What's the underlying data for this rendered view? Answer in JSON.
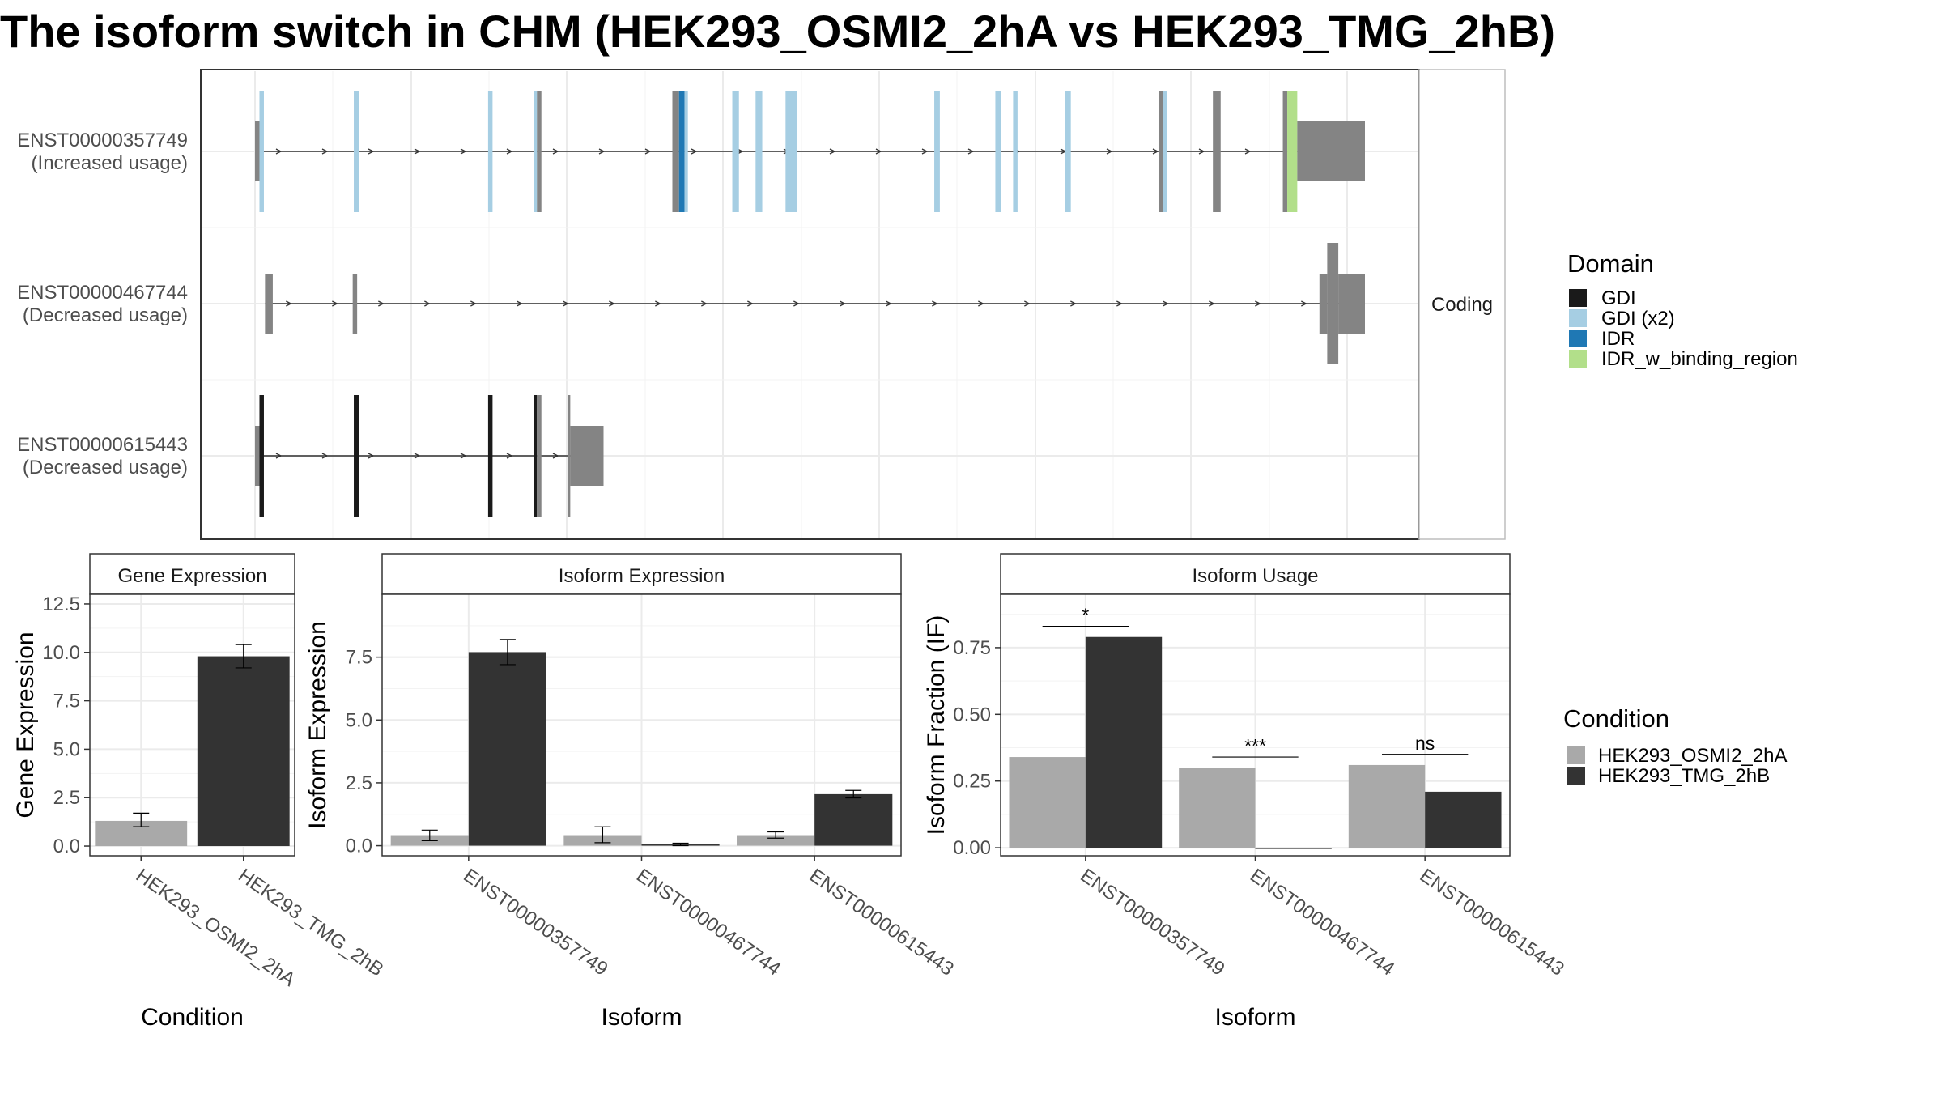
{
  "title": "The isoform switch in CHM (HEK293_OSMI2_2hA vs HEK293_TMG_2hB)",
  "colors": {
    "OSMI2": "#a9a9a9",
    "TMG": "#333333",
    "utr": "#848484",
    "GDI": "#1a1a1a",
    "GDI_x2": "#a6cee3",
    "IDR": "#1f78b4",
    "IDR_w_binding_region": "#b2df8a"
  },
  "chart_data": [
    {
      "type": "gene-structure",
      "facet_label": "Coding",
      "transcripts": [
        {
          "id": "ENST00000357749",
          "usage": "(Increased usage)",
          "segments": [
            {
              "start": 0.0,
              "end": 0.004,
              "kind": "utr"
            },
            {
              "start": 0.004,
              "end": 0.008,
              "kind": "GDI (x2)"
            },
            {
              "start": 0.089,
              "end": 0.094,
              "kind": "GDI (x2)"
            },
            {
              "start": 0.21,
              "end": 0.214,
              "kind": "GDI (x2)"
            },
            {
              "start": 0.251,
              "end": 0.254,
              "kind": "GDI (x2)"
            },
            {
              "start": 0.254,
              "end": 0.258,
              "kind": "utr"
            },
            {
              "start": 0.376,
              "end": 0.382,
              "kind": "utr"
            },
            {
              "start": 0.382,
              "end": 0.387,
              "kind": "IDR"
            },
            {
              "start": 0.387,
              "end": 0.39,
              "kind": "GDI (x2)"
            },
            {
              "start": 0.43,
              "end": 0.436,
              "kind": "GDI (x2)"
            },
            {
              "start": 0.451,
              "end": 0.457,
              "kind": "GDI (x2)"
            },
            {
              "start": 0.478,
              "end": 0.488,
              "kind": "GDI (x2)"
            },
            {
              "start": 0.612,
              "end": 0.617,
              "kind": "GDI (x2)"
            },
            {
              "start": 0.667,
              "end": 0.672,
              "kind": "GDI (x2)"
            },
            {
              "start": 0.683,
              "end": 0.687,
              "kind": "GDI (x2)"
            },
            {
              "start": 0.73,
              "end": 0.735,
              "kind": "GDI (x2)"
            },
            {
              "start": 0.814,
              "end": 0.818,
              "kind": "utr"
            },
            {
              "start": 0.818,
              "end": 0.822,
              "kind": "GDI (x2)"
            },
            {
              "start": 0.863,
              "end": 0.87,
              "kind": "utr"
            },
            {
              "start": 0.926,
              "end": 0.93,
              "kind": "utr"
            },
            {
              "start": 0.93,
              "end": 0.939,
              "kind": "IDR_w_binding_region"
            },
            {
              "start": 0.939,
              "end": 1.0,
              "kind": "utr3"
            }
          ]
        },
        {
          "id": "ENST00000467744",
          "usage": "(Decreased usage)",
          "segments": [
            {
              "start": 0.009,
              "end": 0.016,
              "kind": "utr"
            },
            {
              "start": 0.088,
              "end": 0.092,
              "kind": "utr"
            },
            {
              "start": 0.959,
              "end": 0.966,
              "kind": "utr"
            },
            {
              "start": 0.966,
              "end": 0.976,
              "kind": "cds"
            },
            {
              "start": 0.976,
              "end": 1.0,
              "kind": "utr"
            }
          ]
        },
        {
          "id": "ENST00000615443",
          "usage": "(Decreased usage)",
          "segments": [
            {
              "start": 0.0,
              "end": 0.004,
              "kind": "utr"
            },
            {
              "start": 0.004,
              "end": 0.008,
              "kind": "GDI"
            },
            {
              "start": 0.089,
              "end": 0.094,
              "kind": "GDI"
            },
            {
              "start": 0.21,
              "end": 0.214,
              "kind": "GDI"
            },
            {
              "start": 0.251,
              "end": 0.254,
              "kind": "GDI"
            },
            {
              "start": 0.254,
              "end": 0.258,
              "kind": "utr"
            },
            {
              "start": 0.282,
              "end": 0.284,
              "kind": "utr"
            },
            {
              "start": 0.284,
              "end": 0.314,
              "kind": "utr3"
            }
          ]
        }
      ],
      "legend": {
        "title": "Domain",
        "entries": [
          {
            "label": "GDI",
            "color": "#1a1a1a"
          },
          {
            "label": "GDI (x2)",
            "color": "#a6cee3"
          },
          {
            "label": "IDR",
            "color": "#1f78b4"
          },
          {
            "label": "IDR_w_binding_region",
            "color": "#b2df8a"
          }
        ]
      }
    },
    {
      "type": "bar",
      "title": "Gene Expression",
      "xlabel": "Condition",
      "ylabel": "Gene Expression",
      "categories": [
        "HEK293_OSMI2_2hA",
        "HEK293_TMG_2hB"
      ],
      "series": [
        {
          "name": "HEK293_OSMI2_2hA",
          "values": [
            1.3,
            null
          ],
          "errors": [
            [
              1.0,
              1.7
            ],
            null
          ]
        },
        {
          "name": "HEK293_TMG_2hB",
          "values": [
            null,
            9.8
          ],
          "errors": [
            null,
            [
              9.2,
              10.4
            ]
          ]
        }
      ],
      "yticks": [
        0.0,
        2.5,
        5.0,
        7.5,
        10.0,
        12.5
      ],
      "ytick_labels": [
        "0.0",
        "2.5",
        "5.0",
        "7.5",
        "10.0",
        "12.5"
      ],
      "ylim": [
        -0.5,
        13.0
      ]
    },
    {
      "type": "bar",
      "title": "Isoform Expression",
      "xlabel": "Isoform",
      "ylabel": "Isoform Expression",
      "categories": [
        "ENST00000357749",
        "ENST00000467744",
        "ENST00000615443"
      ],
      "series": [
        {
          "name": "HEK293_OSMI2_2hA",
          "values": [
            0.42,
            0.42,
            0.42
          ],
          "errors": [
            [
              0.2,
              0.62
            ],
            [
              0.12,
              0.75
            ],
            [
              0.3,
              0.55
            ]
          ]
        },
        {
          "name": "HEK293_TMG_2hB",
          "values": [
            7.7,
            0.05,
            2.05
          ],
          "errors": [
            [
              7.2,
              8.2
            ],
            [
              0.0,
              0.1
            ],
            [
              1.9,
              2.2
            ]
          ]
        }
      ],
      "yticks": [
        0.0,
        2.5,
        5.0,
        7.5
      ],
      "ytick_labels": [
        "0.0",
        "2.5",
        "5.0",
        "7.5"
      ],
      "ylim": [
        -0.4,
        10.0
      ]
    },
    {
      "type": "bar",
      "title": "Isoform Usage",
      "xlabel": "Isoform",
      "ylabel": "Isoform Fraction (IF)",
      "categories": [
        "ENST00000357749",
        "ENST00000467744",
        "ENST00000615443"
      ],
      "series": [
        {
          "name": "HEK293_OSMI2_2hA",
          "values": [
            0.34,
            0.3,
            0.31
          ]
        },
        {
          "name": "HEK293_TMG_2hB",
          "values": [
            0.79,
            0.0,
            0.21
          ]
        }
      ],
      "significance": [
        "*",
        "***",
        "ns"
      ],
      "significance_y": [
        0.83,
        0.34,
        0.35
      ],
      "yticks": [
        0.0,
        0.25,
        0.5,
        0.75
      ],
      "ytick_labels": [
        "0.00",
        "0.25",
        "0.50",
        "0.75"
      ],
      "ylim": [
        -0.03,
        0.95
      ]
    }
  ],
  "condition_legend": {
    "title": "Condition",
    "entries": [
      {
        "label": "HEK293_OSMI2_2hA",
        "color": "#a9a9a9"
      },
      {
        "label": "HEK293_TMG_2hB",
        "color": "#333333"
      }
    ]
  }
}
